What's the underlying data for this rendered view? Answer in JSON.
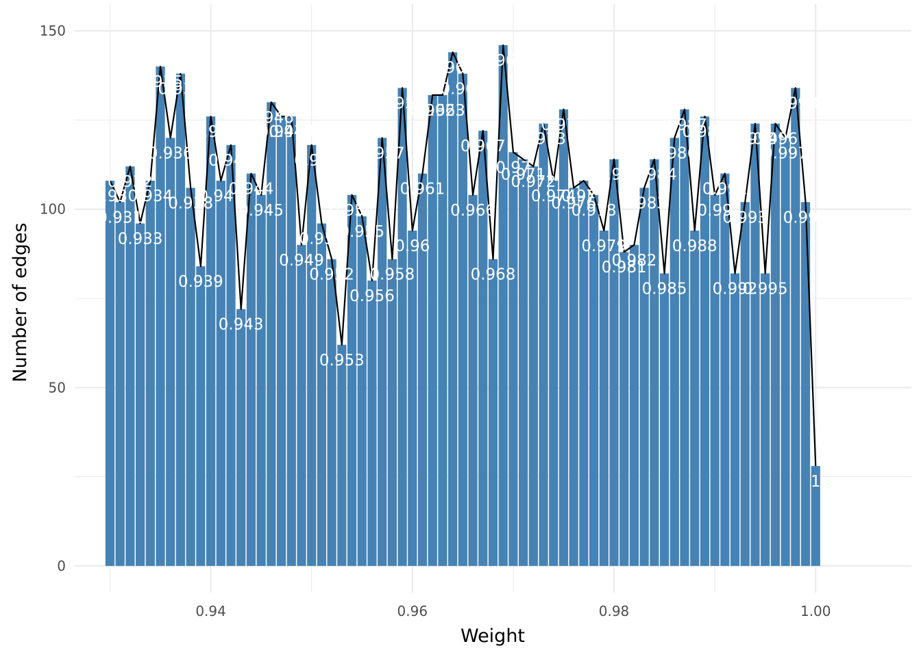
{
  "chart_data": {
    "type": "bar",
    "title": "",
    "xlabel": "Weight",
    "ylabel": "Number of edges",
    "xlim": [
      0.9265,
      1.0095
    ],
    "ylim": [
      -7.5,
      157.5
    ],
    "x_ticks": [
      0.94,
      0.96,
      0.98,
      1.0
    ],
    "x_tick_labels": [
      "0.94",
      "0.96",
      "0.98",
      "1.00"
    ],
    "y_ticks": [
      0,
      50,
      100,
      150
    ],
    "y_tick_labels": [
      "0",
      "50",
      "100",
      "150"
    ],
    "grid": true,
    "legend": "none",
    "bar_width": 0.0009,
    "colors": {
      "bar": "#4682b4",
      "line": "#000000",
      "label": "#ffffff",
      "grid": "#ebebeb"
    },
    "x": [
      0.93,
      0.931,
      0.932,
      0.933,
      0.934,
      0.935,
      0.936,
      0.937,
      0.938,
      0.939,
      0.94,
      0.941,
      0.942,
      0.943,
      0.944,
      0.945,
      0.946,
      0.947,
      0.948,
      0.949,
      0.95,
      0.951,
      0.952,
      0.953,
      0.954,
      0.955,
      0.956,
      0.957,
      0.958,
      0.959,
      0.96,
      0.961,
      0.962,
      0.963,
      0.964,
      0.965,
      0.966,
      0.967,
      0.968,
      0.969,
      0.97,
      0.971,
      0.972,
      0.973,
      0.974,
      0.975,
      0.976,
      0.977,
      0.978,
      0.979,
      0.98,
      0.981,
      0.982,
      0.983,
      0.984,
      0.985,
      0.986,
      0.987,
      0.988,
      0.989,
      0.99,
      0.991,
      0.992,
      0.993,
      0.994,
      0.995,
      0.996,
      0.997,
      0.998,
      0.999,
      1.0
    ],
    "values": [
      108,
      102,
      112,
      96,
      108,
      140,
      120,
      138,
      106,
      84,
      126,
      108,
      118,
      72,
      110,
      104,
      130,
      126,
      126,
      90,
      118,
      96,
      86,
      62,
      104,
      98,
      80,
      120,
      86,
      134,
      94,
      110,
      132,
      132,
      144,
      138,
      104,
      122,
      86,
      146,
      116,
      114,
      112,
      124,
      108,
      128,
      106,
      108,
      104,
      94,
      114,
      88,
      90,
      106,
      114,
      82,
      120,
      128,
      94,
      126,
      104,
      110,
      82,
      102,
      124,
      82,
      124,
      120,
      134,
      102,
      28
    ],
    "labels": [
      "0.93",
      "0.931",
      "0.932",
      "0.933",
      "0.934",
      "0.935",
      "0.936",
      "0.937",
      "0.938",
      "0.939",
      "0.94",
      "0.941",
      "0.942",
      "0.943",
      "0.944",
      "0.945",
      "0.946",
      "0.947",
      "0.948",
      "0.949",
      "0.95",
      "0.951",
      "0.952",
      "0.953",
      "0.954",
      "0.955",
      "0.956",
      "0.957",
      "0.958",
      "0.959",
      "0.96",
      "0.961",
      "0.962",
      "0.963",
      "0.964",
      "0.965",
      "0.966",
      "0.967",
      "0.968",
      "0.969",
      "0.97",
      "0.971",
      "0.972",
      "0.973",
      "0.974",
      "0.975",
      "0.976",
      "0.977",
      "0.978",
      "0.979",
      "0.98",
      "0.981",
      "0.982",
      "0.983",
      "0.984",
      "0.985",
      "0.986",
      "0.987",
      "0.988",
      "0.989",
      "0.99",
      "0.991",
      "0.992",
      "0.993",
      "0.994",
      "0.995",
      "0.996",
      "0.997",
      "0.998",
      "0.999",
      "1"
    ]
  }
}
